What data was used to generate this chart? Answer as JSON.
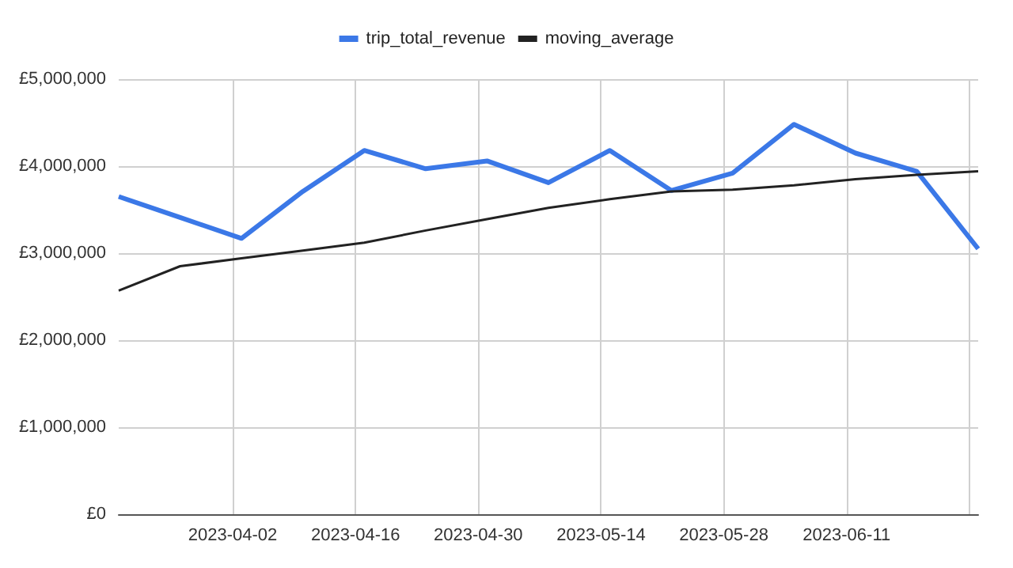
{
  "chart_data": {
    "type": "line",
    "x": [
      "2023-03-20",
      "2023-03-27",
      "2023-04-03",
      "2023-04-10",
      "2023-04-17",
      "2023-04-24",
      "2023-05-01",
      "2023-05-08",
      "2023-05-15",
      "2023-05-22",
      "2023-05-29",
      "2023-06-05",
      "2023-06-12",
      "2023-06-19",
      "2023-06-26"
    ],
    "series": [
      {
        "name": "trip_total_revenue",
        "color": "#3b78e7",
        "values": [
          3650000,
          3410000,
          3170000,
          3710000,
          4180000,
          3970000,
          4060000,
          3810000,
          4180000,
          3720000,
          3920000,
          4480000,
          4150000,
          3940000,
          3050000
        ]
      },
      {
        "name": "moving_average",
        "color": "#222222",
        "values": [
          2570000,
          2850000,
          2940000,
          3030000,
          3120000,
          3260000,
          3390000,
          3520000,
          3620000,
          3710000,
          3730000,
          3780000,
          3850000,
          3900000,
          3940000
        ]
      }
    ],
    "xlim": [
      "2023-03-20",
      "2023-06-26"
    ],
    "xticks": [
      "2023-04-02",
      "2023-04-16",
      "2023-04-30",
      "2023-05-14",
      "2023-05-28",
      "2023-06-11",
      {
        "value": "2023-06-25",
        "label": null
      }
    ],
    "ylim": [
      0,
      5000000
    ],
    "yticks": [
      {
        "value": 0,
        "label": "£0"
      },
      {
        "value": 1000000,
        "label": "£1,000,000"
      },
      {
        "value": 2000000,
        "label": "£2,000,000"
      },
      {
        "value": 3000000,
        "label": "£3,000,000"
      },
      {
        "value": 4000000,
        "label": "£4,000,000"
      },
      {
        "value": 5000000,
        "label": "£5,000,000"
      }
    ],
    "grid": true,
    "legend": "top",
    "marker": "none"
  }
}
